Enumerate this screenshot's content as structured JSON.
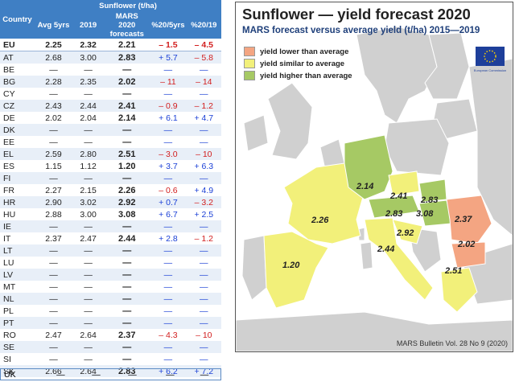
{
  "table": {
    "header_group": "Sunflower (t/ha)",
    "columns": [
      "Country",
      "Avg 5yrs",
      "2019",
      "MARS 2020 forecasts",
      "%20/5yrs",
      "%20/19"
    ],
    "rows": [
      {
        "c": "EU",
        "avg": "2.25",
        "y19": "2.32",
        "mars": "2.21",
        "p5": "– 1.5",
        "p19": "– 4.5",
        "s5": "neg",
        "s19": "neg"
      },
      {
        "c": "AT",
        "avg": "2.68",
        "y19": "3.00",
        "mars": "2.83",
        "p5": "+ 5.7",
        "p19": "– 5.8",
        "s5": "pos",
        "s19": "neg"
      },
      {
        "c": "BE",
        "avg": "—",
        "y19": "—",
        "mars": "—",
        "p5": "—",
        "p19": "—",
        "s5": "pos",
        "s19": "pos"
      },
      {
        "c": "BG",
        "avg": "2.28",
        "y19": "2.35",
        "mars": "2.02",
        "p5": "– 11",
        "p19": "– 14",
        "s5": "neg",
        "s19": "neg"
      },
      {
        "c": "CY",
        "avg": "—",
        "y19": "—",
        "mars": "—",
        "p5": "—",
        "p19": "—",
        "s5": "pos",
        "s19": "pos"
      },
      {
        "c": "CZ",
        "avg": "2.43",
        "y19": "2.44",
        "mars": "2.41",
        "p5": "– 0.9",
        "p19": "– 1.2",
        "s5": "neg",
        "s19": "neg"
      },
      {
        "c": "DE",
        "avg": "2.02",
        "y19": "2.04",
        "mars": "2.14",
        "p5": "+ 6.1",
        "p19": "+ 4.7",
        "s5": "pos",
        "s19": "pos"
      },
      {
        "c": "DK",
        "avg": "—",
        "y19": "—",
        "mars": "—",
        "p5": "—",
        "p19": "—",
        "s5": "pos",
        "s19": "pos"
      },
      {
        "c": "EE",
        "avg": "—",
        "y19": "—",
        "mars": "—",
        "p5": "—",
        "p19": "—",
        "s5": "pos",
        "s19": "pos"
      },
      {
        "c": "EL",
        "avg": "2.59",
        "y19": "2.80",
        "mars": "2.51",
        "p5": "– 3.0",
        "p19": "– 10",
        "s5": "neg",
        "s19": "neg"
      },
      {
        "c": "ES",
        "avg": "1.15",
        "y19": "1.12",
        "mars": "1.20",
        "p5": "+ 3.7",
        "p19": "+ 6.3",
        "s5": "pos",
        "s19": "pos"
      },
      {
        "c": "FI",
        "avg": "—",
        "y19": "—",
        "mars": "—",
        "p5": "—",
        "p19": "—",
        "s5": "pos",
        "s19": "pos"
      },
      {
        "c": "FR",
        "avg": "2.27",
        "y19": "2.15",
        "mars": "2.26",
        "p5": "– 0.6",
        "p19": "+ 4.9",
        "s5": "neg",
        "s19": "pos"
      },
      {
        "c": "HR",
        "avg": "2.90",
        "y19": "3.02",
        "mars": "2.92",
        "p5": "+ 0.7",
        "p19": "– 3.2",
        "s5": "pos",
        "s19": "neg"
      },
      {
        "c": "HU",
        "avg": "2.88",
        "y19": "3.00",
        "mars": "3.08",
        "p5": "+ 6.7",
        "p19": "+ 2.5",
        "s5": "pos",
        "s19": "pos"
      },
      {
        "c": "IE",
        "avg": "—",
        "y19": "—",
        "mars": "—",
        "p5": "—",
        "p19": "—",
        "s5": "pos",
        "s19": "pos"
      },
      {
        "c": "IT",
        "avg": "2.37",
        "y19": "2.47",
        "mars": "2.44",
        "p5": "+ 2.8",
        "p19": "– 1.2",
        "s5": "pos",
        "s19": "neg"
      },
      {
        "c": "LT",
        "avg": "—",
        "y19": "—",
        "mars": "—",
        "p5": "—",
        "p19": "—",
        "s5": "pos",
        "s19": "pos"
      },
      {
        "c": "LU",
        "avg": "—",
        "y19": "—",
        "mars": "—",
        "p5": "—",
        "p19": "—",
        "s5": "pos",
        "s19": "pos"
      },
      {
        "c": "LV",
        "avg": "—",
        "y19": "—",
        "mars": "—",
        "p5": "—",
        "p19": "—",
        "s5": "pos",
        "s19": "pos"
      },
      {
        "c": "MT",
        "avg": "—",
        "y19": "—",
        "mars": "—",
        "p5": "—",
        "p19": "—",
        "s5": "pos",
        "s19": "pos"
      },
      {
        "c": "NL",
        "avg": "—",
        "y19": "—",
        "mars": "—",
        "p5": "—",
        "p19": "—",
        "s5": "pos",
        "s19": "pos"
      },
      {
        "c": "PL",
        "avg": "—",
        "y19": "—",
        "mars": "—",
        "p5": "—",
        "p19": "—",
        "s5": "pos",
        "s19": "pos"
      },
      {
        "c": "PT",
        "avg": "—",
        "y19": "—",
        "mars": "—",
        "p5": "—",
        "p19": "—",
        "s5": "pos",
        "s19": "pos"
      },
      {
        "c": "RO",
        "avg": "2.47",
        "y19": "2.64",
        "mars": "2.37",
        "p5": "– 4.3",
        "p19": "– 10",
        "s5": "neg",
        "s19": "neg"
      },
      {
        "c": "SE",
        "avg": "—",
        "y19": "—",
        "mars": "—",
        "p5": "—",
        "p19": "—",
        "s5": "pos",
        "s19": "pos"
      },
      {
        "c": "SI",
        "avg": "—",
        "y19": "—",
        "mars": "—",
        "p5": "—",
        "p19": "—",
        "s5": "pos",
        "s19": "pos"
      },
      {
        "c": "SK",
        "avg": "2.66",
        "y19": "2.64",
        "mars": "2.83",
        "p5": "+ 6.2",
        "p19": "+ 7.2",
        "s5": "pos",
        "s19": "pos"
      }
    ],
    "uk": {
      "c": "UK",
      "avg": "—",
      "y19": "—",
      "mars": "—",
      "p5": "—",
      "p19": "—"
    }
  },
  "map": {
    "title": "Sunflower — yield forecast 2020",
    "subtitle": "MARS forecast versus average yield (t/ha) 2015—2019",
    "legend": [
      {
        "label": "yield lower than average",
        "color": "#f4a582"
      },
      {
        "label": "yield similar to average",
        "color": "#f2f07a"
      },
      {
        "label": "yield higher than average",
        "color": "#a6c964"
      }
    ],
    "colors": {
      "sea": "#ffffff",
      "land_other": "#d0d0d0",
      "border": "#ffffff",
      "logo_blue": "#1e3f9a"
    },
    "labels": [
      "2.14",
      "2.41",
      "2.83",
      "2.83",
      "3.08",
      "2.26",
      "2.37",
      "2.92",
      "2.44",
      "2.02",
      "1.20",
      "2.51"
    ],
    "footer": "MARS Bulletin Vol. 28 No 9 (2020)",
    "logo_text": "European Commission"
  }
}
